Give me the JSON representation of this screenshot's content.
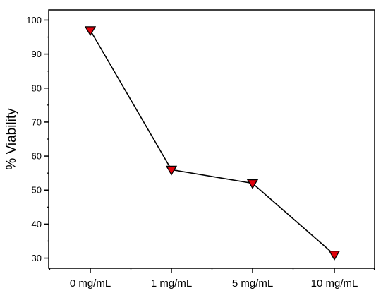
{
  "chart_data": {
    "type": "line",
    "title": "",
    "xlabel": "",
    "ylabel": "% Viability",
    "categories": [
      "0 mg/mL",
      "1 mg/mL",
      "5 mg/mL",
      "10 mg/mL"
    ],
    "series": [
      {
        "values": [
          97,
          56,
          52,
          31
        ],
        "marker": "down-triangle",
        "marker_color": "#e0000a",
        "line_color": "#000000"
      }
    ],
    "ylim": [
      27,
      103
    ],
    "yticks": [
      30,
      40,
      50,
      60,
      70,
      80,
      90,
      100
    ],
    "grid": false
  }
}
